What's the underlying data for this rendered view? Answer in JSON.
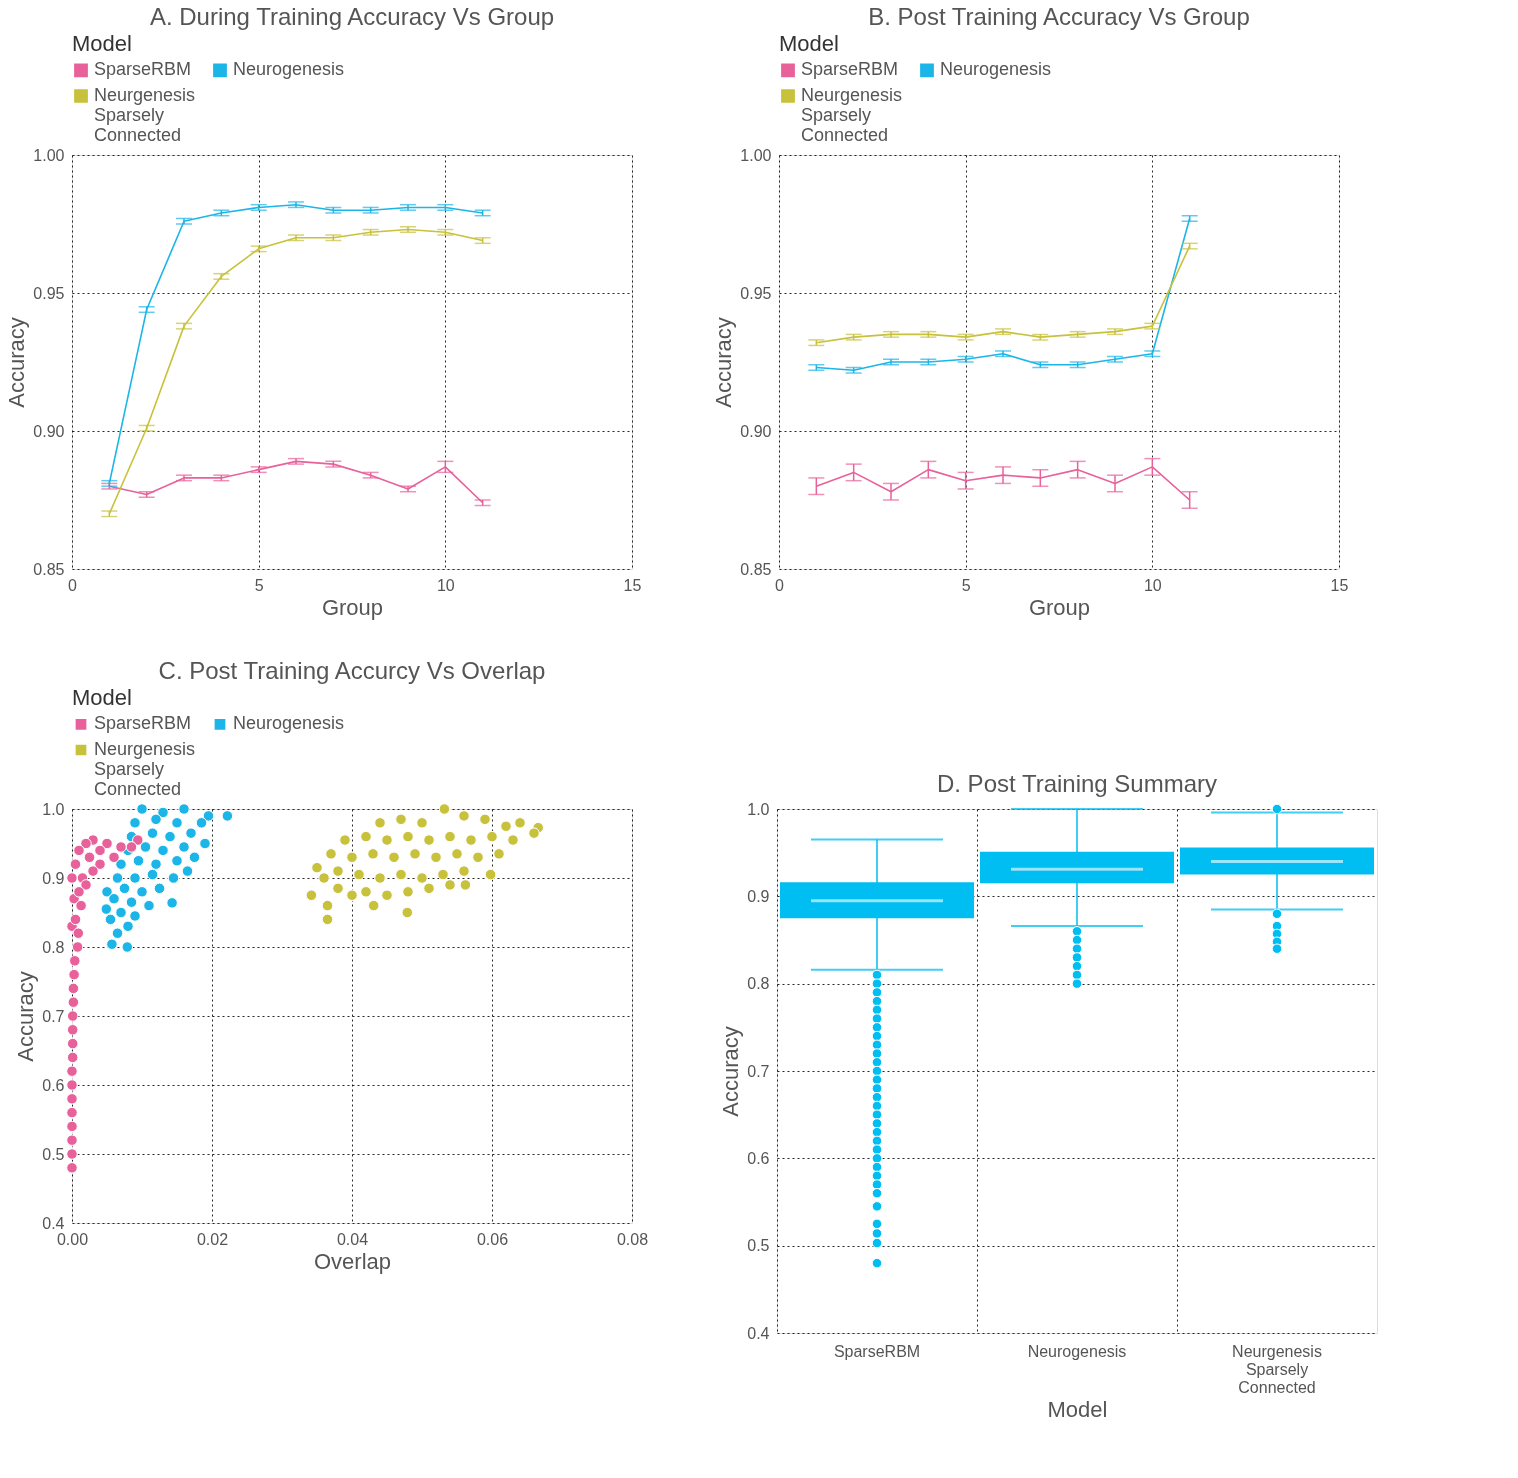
{
  "chart_data": [
    {
      "type": "line",
      "title": "A. During Training Accuracy Vs Group",
      "xlabel": "Group",
      "ylabel": "Accuracy",
      "legend_title": "Model",
      "legend": "top left",
      "grid": true,
      "line_style": "solid",
      "x": [
        1,
        2,
        3,
        4,
        5,
        6,
        7,
        8,
        9,
        10,
        11
      ],
      "xlim": [
        0,
        15
      ],
      "xticks": [
        0,
        5,
        10,
        15
      ],
      "ylim": [
        0.85,
        1.0
      ],
      "yticks": [
        {
          "value": 0.85,
          "label": "0.85"
        },
        {
          "value": 0.9,
          "label": "0.90"
        },
        {
          "value": 0.95,
          "label": "0.95"
        },
        {
          "value": 1.0,
          "label": "1.00"
        }
      ],
      "series": [
        {
          "name": "SparseRBM",
          "color": "#e8619b",
          "values": [
            0.88,
            0.877,
            0.883,
            0.883,
            0.886,
            0.889,
            0.888,
            0.884,
            0.879,
            0.887,
            0.874
          ],
          "errors": [
            0.001,
            0.001,
            0.001,
            0.001,
            0.001,
            0.001,
            0.001,
            0.001,
            0.001,
            0.002,
            0.001
          ]
        },
        {
          "name": "Neurogenesis",
          "color": "#1cb5e8",
          "values": [
            0.881,
            0.944,
            0.976,
            0.979,
            0.981,
            0.982,
            0.98,
            0.98,
            0.981,
            0.981,
            0.979
          ],
          "errors": [
            0.001,
            0.001,
            0.001,
            0.001,
            0.001,
            0.001,
            0.001,
            0.001,
            0.001,
            0.001,
            0.001
          ]
        },
        {
          "name": "Neurgenesis Sparsely Connected",
          "color": "#c8c13c",
          "values": [
            0.87,
            0.901,
            0.938,
            0.956,
            0.966,
            0.97,
            0.97,
            0.972,
            0.973,
            0.972,
            0.969
          ],
          "errors": [
            0.001,
            0.001,
            0.001,
            0.001,
            0.001,
            0.001,
            0.001,
            0.001,
            0.001,
            0.001,
            0.001
          ]
        }
      ]
    },
    {
      "type": "line",
      "title": "B. Post Training Accuracy Vs Group",
      "xlabel": "Group",
      "ylabel": "Accuracy",
      "legend_title": "Model",
      "legend": "top left",
      "grid": true,
      "line_style": "solid",
      "x": [
        1,
        2,
        3,
        4,
        5,
        6,
        7,
        8,
        9,
        10,
        11
      ],
      "xlim": [
        0,
        15
      ],
      "xticks": [
        0,
        5,
        10,
        15
      ],
      "ylim": [
        0.85,
        1.0
      ],
      "yticks": [
        {
          "value": 0.85,
          "label": "0.85"
        },
        {
          "value": 0.9,
          "label": "0.90"
        },
        {
          "value": 0.95,
          "label": "0.95"
        },
        {
          "value": 1.0,
          "label": "1.00"
        }
      ],
      "series": [
        {
          "name": "SparseRBM",
          "color": "#e8619b",
          "values": [
            0.88,
            0.885,
            0.878,
            0.886,
            0.882,
            0.884,
            0.883,
            0.886,
            0.881,
            0.887,
            0.875
          ],
          "errors": [
            0.003,
            0.003,
            0.003,
            0.003,
            0.003,
            0.003,
            0.003,
            0.003,
            0.003,
            0.003,
            0.003
          ]
        },
        {
          "name": "Neurogenesis",
          "color": "#1cb5e8",
          "values": [
            0.923,
            0.922,
            0.925,
            0.925,
            0.926,
            0.928,
            0.924,
            0.924,
            0.926,
            0.928,
            0.977
          ],
          "errors": [
            0.001,
            0.001,
            0.001,
            0.001,
            0.001,
            0.001,
            0.001,
            0.001,
            0.001,
            0.001,
            0.001
          ]
        },
        {
          "name": "Neurgenesis Sparsely Connected",
          "color": "#c8c13c",
          "values": [
            0.932,
            0.934,
            0.935,
            0.935,
            0.934,
            0.936,
            0.934,
            0.935,
            0.936,
            0.938,
            0.967
          ],
          "errors": [
            0.001,
            0.001,
            0.001,
            0.001,
            0.001,
            0.001,
            0.001,
            0.001,
            0.001,
            0.001,
            0.001
          ]
        }
      ]
    },
    {
      "type": "scatter",
      "title": "C. Post Training Accurcy Vs Overlap",
      "xlabel": "Overlap",
      "ylabel": "Accuracy",
      "legend_title": "Model",
      "legend": "top left",
      "grid": true,
      "marker": "circle",
      "xlim": [
        0,
        0.08
      ],
      "xticks": [
        {
          "value": 0,
          "label": "0.00"
        },
        {
          "value": 0.02,
          "label": "0.02"
        },
        {
          "value": 0.04,
          "label": "0.04"
        },
        {
          "value": 0.06,
          "label": "0.06"
        },
        {
          "value": 0.08,
          "label": "0.08"
        }
      ],
      "ylim": [
        0.4,
        1.0
      ],
      "yticks": [
        0.4,
        0.5,
        0.6,
        0.7,
        0.8,
        0.9,
        {
          "value": 1.0,
          "label": "1.0"
        }
      ],
      "series": [
        {
          "name": "SparseRBM",
          "color": "#e8619b",
          "x": [
            0.0,
            0.0,
            0.0,
            0.0,
            0.0,
            0.0,
            0.0,
            0.0,
            0.0001,
            0.0001,
            0.0001,
            0.0001,
            0.0002,
            0.0002,
            0.0003,
            0.0004,
            0.0008,
            0.0009,
            0.0005,
            0.0013,
            0.001,
            0.002,
            0.0015,
            0.003,
            0.0005,
            0.004,
            0.0025,
            0.006,
            0.001,
            0.004,
            0.007,
            0.0085,
            0.002,
            0.005,
            0.0094,
            0.003,
            0.0,
            0.0003,
            0.0
          ],
          "values": [
            0.48,
            0.5,
            0.52,
            0.54,
            0.56,
            0.58,
            0.6,
            0.62,
            0.64,
            0.66,
            0.68,
            0.7,
            0.72,
            0.74,
            0.76,
            0.78,
            0.8,
            0.82,
            0.84,
            0.86,
            0.88,
            0.89,
            0.9,
            0.91,
            0.92,
            0.92,
            0.93,
            0.93,
            0.94,
            0.94,
            0.945,
            0.945,
            0.95,
            0.95,
            0.955,
            0.955,
            0.9,
            0.87,
            0.83
          ]
        },
        {
          "name": "Neurogenesis",
          "color": "#1cb5e8",
          "x": [
            0.0057,
            0.0079,
            0.0065,
            0.008,
            0.0055,
            0.0049,
            0.007,
            0.009,
            0.006,
            0.0085,
            0.011,
            0.0143,
            0.005,
            0.0075,
            0.01,
            0.0125,
            0.0065,
            0.009,
            0.0115,
            0.0145,
            0.0165,
            0.007,
            0.0095,
            0.012,
            0.015,
            0.0175,
            0.008,
            0.0105,
            0.013,
            0.016,
            0.019,
            0.0085,
            0.0115,
            0.014,
            0.017,
            0.009,
            0.012,
            0.015,
            0.0185,
            0.01,
            0.013,
            0.016,
            0.0195,
            0.0222
          ],
          "values": [
            0.804,
            0.8,
            0.82,
            0.83,
            0.84,
            0.855,
            0.85,
            0.845,
            0.87,
            0.865,
            0.86,
            0.864,
            0.88,
            0.885,
            0.88,
            0.885,
            0.9,
            0.9,
            0.905,
            0.9,
            0.91,
            0.92,
            0.925,
            0.92,
            0.925,
            0.93,
            0.94,
            0.945,
            0.94,
            0.945,
            0.95,
            0.96,
            0.965,
            0.96,
            0.965,
            0.98,
            0.985,
            0.98,
            0.98,
            1.0,
            0.995,
            1.0,
            0.99,
            0.99
          ]
        },
        {
          "name": "Neurgenesis Sparsely Connected",
          "color": "#c8c13c",
          "x": [
            0.0342,
            0.0365,
            0.0365,
            0.0431,
            0.0479,
            0.036,
            0.038,
            0.04,
            0.042,
            0.045,
            0.048,
            0.051,
            0.054,
            0.0562,
            0.035,
            0.038,
            0.041,
            0.044,
            0.047,
            0.05,
            0.053,
            0.056,
            0.0598,
            0.037,
            0.04,
            0.043,
            0.046,
            0.049,
            0.052,
            0.055,
            0.058,
            0.061,
            0.039,
            0.042,
            0.045,
            0.048,
            0.051,
            0.054,
            0.057,
            0.06,
            0.063,
            0.066,
            0.0666,
            0.044,
            0.047,
            0.05,
            0.0532,
            0.056,
            0.059,
            0.062,
            0.064
          ],
          "values": [
            0.875,
            0.86,
            0.84,
            0.86,
            0.85,
            0.9,
            0.885,
            0.875,
            0.88,
            0.875,
            0.88,
            0.885,
            0.89,
            0.89,
            0.915,
            0.91,
            0.905,
            0.9,
            0.905,
            0.9,
            0.905,
            0.91,
            0.905,
            0.935,
            0.93,
            0.935,
            0.93,
            0.935,
            0.93,
            0.935,
            0.93,
            0.935,
            0.955,
            0.96,
            0.955,
            0.96,
            0.955,
            0.96,
            0.955,
            0.96,
            0.955,
            0.965,
            0.973,
            0.98,
            0.985,
            0.98,
            1.0,
            0.99,
            0.985,
            0.975,
            0.98
          ]
        }
      ]
    },
    {
      "type": "box",
      "title": "D. Post Training Summary",
      "xlabel": "Model",
      "ylabel": "Accuracy",
      "grid": true,
      "color": "#00bdf2",
      "categories": [
        "SparseRBM",
        "Neurogenesis",
        "Neurgenesis Sparsely Connected"
      ],
      "ylim": [
        0.4,
        1.0
      ],
      "yticks": [
        0.4,
        0.5,
        0.6,
        0.7,
        0.8,
        0.9,
        {
          "value": 1.0,
          "label": "1.0"
        }
      ],
      "boxes": [
        {
          "low": 0.816,
          "q1": 0.875,
          "median": 0.895,
          "q3": 0.916,
          "high": 0.965,
          "outliers": [
            0.81,
            0.8,
            0.79,
            0.78,
            0.77,
            0.76,
            0.75,
            0.74,
            0.73,
            0.72,
            0.71,
            0.7,
            0.69,
            0.68,
            0.67,
            0.66,
            0.65,
            0.64,
            0.63,
            0.62,
            0.61,
            0.6,
            0.59,
            0.58,
            0.57,
            0.56,
            0.545,
            0.525,
            0.514,
            0.503,
            0.48
          ]
        },
        {
          "low": 0.866,
          "q1": 0.915,
          "median": 0.931,
          "q3": 0.951,
          "high": 1.0,
          "outliers": [
            0.86,
            0.85,
            0.84,
            0.83,
            0.82,
            0.81,
            0.8
          ]
        },
        {
          "low": 0.885,
          "q1": 0.925,
          "median": 0.94,
          "q3": 0.956,
          "high": 0.996,
          "outliers": [
            1.0,
            0.88,
            0.866,
            0.857,
            0.848,
            0.84
          ]
        }
      ]
    }
  ]
}
